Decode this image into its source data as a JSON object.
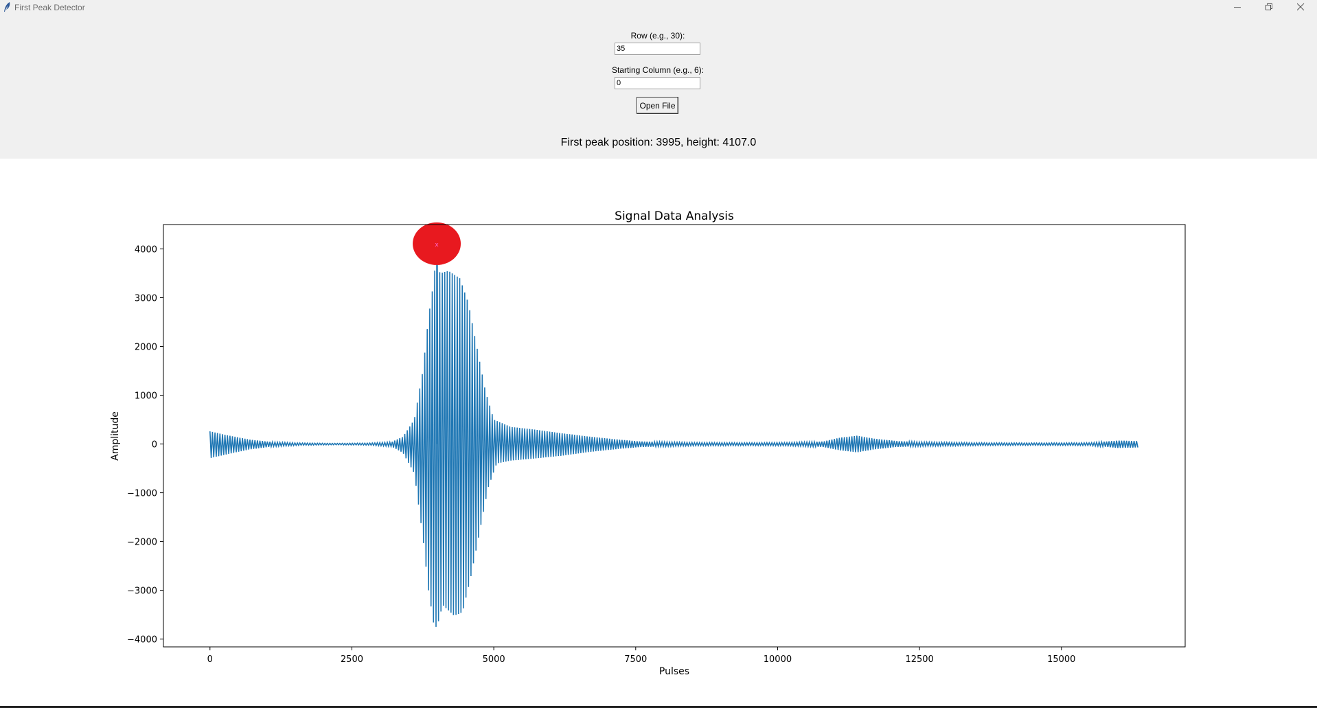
{
  "window": {
    "title": "First Peak Detector",
    "icons": [
      "feather-icon",
      "minimize-icon",
      "restore-icon",
      "close-icon"
    ]
  },
  "form": {
    "row_label": "Row (e.g., 30):",
    "row_value": "35",
    "col_label": "Starting Column (e.g., 6):",
    "col_value": "0",
    "open_button": "Open File"
  },
  "result_text": "First peak position: 3995, height: 4107.0",
  "chart_data": {
    "type": "line",
    "title": "Signal Data Analysis",
    "xlabel": "Pulses",
    "ylabel": "Amplitude",
    "xlim": [
      -820,
      17180
    ],
    "ylim": [
      -4160,
      4500
    ],
    "xticks": [
      0,
      2500,
      5000,
      7500,
      10000,
      12500,
      15000
    ],
    "xtick_labels": [
      "0",
      "2500",
      "5000",
      "7500",
      "10000",
      "12500",
      "15000"
    ],
    "yticks": [
      4000,
      3000,
      2000,
      1000,
      0,
      -1000,
      -2000,
      -3000,
      -4000
    ],
    "ytick_labels": [
      "4000",
      "3000",
      "2000",
      "1000",
      "0",
      "−1000",
      "−2000",
      "−3000",
      "−4000"
    ],
    "line_color": "#1f77b4",
    "marker_color": "#e8191f",
    "series": [
      {
        "x_range": [
          0,
          16350
        ],
        "envelope_upper": [
          [
            0,
            260
          ],
          [
            300,
            180
          ],
          [
            700,
            90
          ],
          [
            1100,
            40
          ],
          [
            1600,
            20
          ],
          [
            2200,
            12
          ],
          [
            2800,
            18
          ],
          [
            3200,
            40
          ],
          [
            3400,
            150
          ],
          [
            3600,
            500
          ],
          [
            3750,
            1500
          ],
          [
            3850,
            2600
          ],
          [
            3950,
            3400
          ],
          [
            3995,
            4107
          ],
          [
            4050,
            3500
          ],
          [
            4200,
            3550
          ],
          [
            4400,
            3400
          ],
          [
            4550,
            2900
          ],
          [
            4700,
            2000
          ],
          [
            4850,
            1100
          ],
          [
            5000,
            500
          ],
          [
            5300,
            350
          ],
          [
            5700,
            300
          ],
          [
            6200,
            220
          ],
          [
            6700,
            150
          ],
          [
            7200,
            90
          ],
          [
            7600,
            50
          ],
          [
            8500,
            30
          ],
          [
            9500,
            25
          ],
          [
            10200,
            30
          ],
          [
            10800,
            50
          ],
          [
            11100,
            130
          ],
          [
            11400,
            170
          ],
          [
            11700,
            110
          ],
          [
            12100,
            60
          ],
          [
            12500,
            40
          ],
          [
            13500,
            25
          ],
          [
            14500,
            20
          ],
          [
            15500,
            25
          ],
          [
            16000,
            70
          ],
          [
            16350,
            60
          ]
        ],
        "envelope_lower": [
          [
            0,
            -290
          ],
          [
            300,
            -210
          ],
          [
            700,
            -110
          ],
          [
            1100,
            -50
          ],
          [
            1600,
            -25
          ],
          [
            2200,
            -15
          ],
          [
            2800,
            -22
          ],
          [
            3200,
            -50
          ],
          [
            3400,
            -180
          ],
          [
            3600,
            -600
          ],
          [
            3750,
            -1900
          ],
          [
            3850,
            -3000
          ],
          [
            3950,
            -3750
          ],
          [
            4000,
            -3750
          ],
          [
            4100,
            -3300
          ],
          [
            4300,
            -3520
          ],
          [
            4450,
            -3450
          ],
          [
            4600,
            -2700
          ],
          [
            4750,
            -1800
          ],
          [
            4900,
            -900
          ],
          [
            5050,
            -400
          ],
          [
            5300,
            -340
          ],
          [
            5700,
            -300
          ],
          [
            6200,
            -240
          ],
          [
            6700,
            -160
          ],
          [
            7200,
            -100
          ],
          [
            7600,
            -60
          ],
          [
            8500,
            -35
          ],
          [
            9500,
            -30
          ],
          [
            10200,
            -35
          ],
          [
            10800,
            -60
          ],
          [
            11100,
            -130
          ],
          [
            11400,
            -170
          ],
          [
            11700,
            -110
          ],
          [
            12100,
            -60
          ],
          [
            12500,
            -45
          ],
          [
            13500,
            -30
          ],
          [
            14500,
            -25
          ],
          [
            15500,
            -30
          ],
          [
            16000,
            -80
          ],
          [
            16350,
            -70
          ]
        ]
      }
    ],
    "peak": {
      "x": 3995,
      "y": 4107
    }
  }
}
